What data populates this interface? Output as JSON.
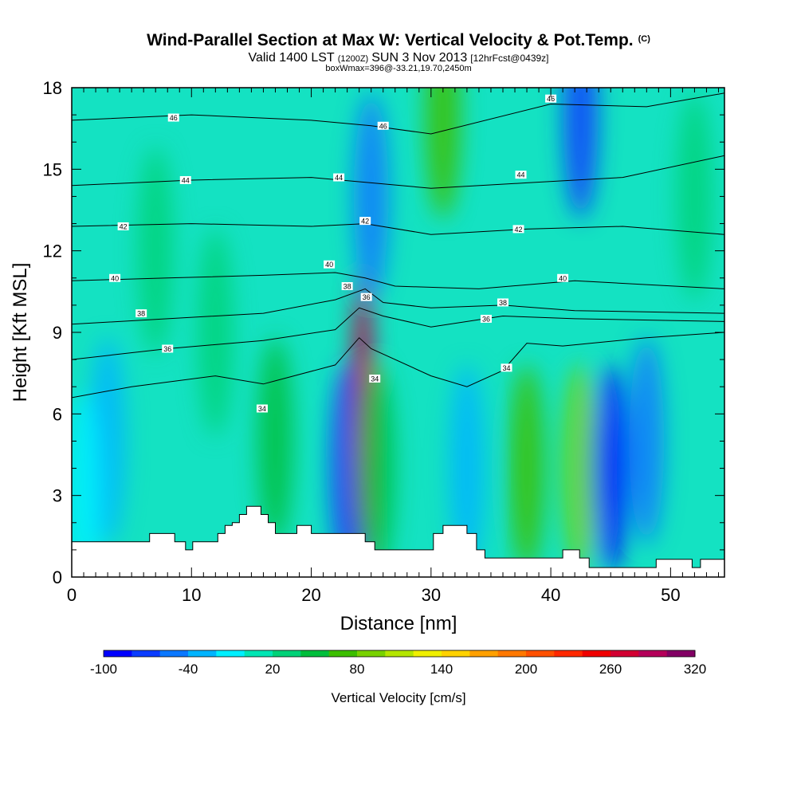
{
  "header": {
    "title": "Wind-Parallel Section at Max W: Vertical Velocity & Pot.Temp.",
    "copyright": "(C)",
    "valid_main": "Valid 1400 LST",
    "valid_utc": "(1200Z)",
    "valid_date": "SUN 3 Nov 2013",
    "forecast": "[12hrFcst@0439z]",
    "box_info": "boxWmax=396@-33.21,19.70,2450m"
  },
  "chart_data": {
    "type": "heatmap",
    "xlabel": "Distance [nm]",
    "ylabel": "Height [Kft MSL]",
    "xlim": [
      0,
      54.5
    ],
    "ylim": [
      0,
      18
    ],
    "x_ticks": [
      0,
      10,
      20,
      30,
      40,
      50
    ],
    "y_ticks": [
      0,
      3,
      6,
      9,
      12,
      15,
      18
    ],
    "colorbar": {
      "label": "Vertical Velocity [cm/s]",
      "min": -100,
      "max": 340,
      "step": 20,
      "tick_values": [
        -100,
        -40,
        20,
        80,
        140,
        200,
        260,
        320
      ],
      "colors": [
        "#0000ff",
        "#0a3cff",
        "#0a78ff",
        "#00b4ff",
        "#00f0ff",
        "#00e6b4",
        "#00d278",
        "#00be3c",
        "#3cbe00",
        "#78d200",
        "#b4e600",
        "#f0f000",
        "#ffd200",
        "#ffa000",
        "#ff7800",
        "#ff5000",
        "#ff2800",
        "#f00000",
        "#d20032",
        "#b4005a",
        "#820064"
      ]
    },
    "terrain_kft": [
      {
        "x": 0,
        "z": 1.3
      },
      {
        "x": 6.5,
        "z": 1.3
      },
      {
        "x": 6.5,
        "z": 1.6
      },
      {
        "x": 8.6,
        "z": 1.6
      },
      {
        "x": 8.6,
        "z": 1.3
      },
      {
        "x": 9.5,
        "z": 1.3
      },
      {
        "x": 9.5,
        "z": 1.0
      },
      {
        "x": 10.1,
        "z": 1.0
      },
      {
        "x": 10.1,
        "z": 1.3
      },
      {
        "x": 12.2,
        "z": 1.3
      },
      {
        "x": 12.2,
        "z": 1.6
      },
      {
        "x": 12.8,
        "z": 1.6
      },
      {
        "x": 12.8,
        "z": 1.9
      },
      {
        "x": 13.4,
        "z": 1.9
      },
      {
        "x": 13.4,
        "z": 2.0
      },
      {
        "x": 14.0,
        "z": 2.0
      },
      {
        "x": 14.0,
        "z": 2.3
      },
      {
        "x": 14.6,
        "z": 2.3
      },
      {
        "x": 14.6,
        "z": 2.6
      },
      {
        "x": 15.8,
        "z": 2.6
      },
      {
        "x": 15.8,
        "z": 2.3
      },
      {
        "x": 16.4,
        "z": 2.3
      },
      {
        "x": 16.4,
        "z": 2.0
      },
      {
        "x": 17.0,
        "z": 2.0
      },
      {
        "x": 17.0,
        "z": 1.6
      },
      {
        "x": 18.8,
        "z": 1.6
      },
      {
        "x": 18.8,
        "z": 1.9
      },
      {
        "x": 20.0,
        "z": 1.9
      },
      {
        "x": 20.0,
        "z": 1.6
      },
      {
        "x": 24.5,
        "z": 1.6
      },
      {
        "x": 24.5,
        "z": 1.3
      },
      {
        "x": 25.3,
        "z": 1.3
      },
      {
        "x": 25.3,
        "z": 1.0
      },
      {
        "x": 30.2,
        "z": 1.0
      },
      {
        "x": 30.2,
        "z": 1.6
      },
      {
        "x": 31.0,
        "z": 1.6
      },
      {
        "x": 31.0,
        "z": 1.9
      },
      {
        "x": 33.0,
        "z": 1.9
      },
      {
        "x": 33.0,
        "z": 1.6
      },
      {
        "x": 33.8,
        "z": 1.6
      },
      {
        "x": 33.8,
        "z": 1.0
      },
      {
        "x": 34.5,
        "z": 1.0
      },
      {
        "x": 34.5,
        "z": 0.7
      },
      {
        "x": 41.0,
        "z": 0.7
      },
      {
        "x": 41.0,
        "z": 1.0
      },
      {
        "x": 42.4,
        "z": 1.0
      },
      {
        "x": 42.4,
        "z": 0.7
      },
      {
        "x": 43.2,
        "z": 0.7
      },
      {
        "x": 43.2,
        "z": 0.35
      },
      {
        "x": 48.8,
        "z": 0.35
      },
      {
        "x": 48.8,
        "z": 0.65
      },
      {
        "x": 51.8,
        "z": 0.65
      },
      {
        "x": 51.8,
        "z": 0.35
      },
      {
        "x": 52.5,
        "z": 0.35
      },
      {
        "x": 52.5,
        "z": 0.65
      },
      {
        "x": 54.5,
        "z": 0.65
      }
    ],
    "vertical_velocity_cells": [
      {
        "x": 3,
        "z": 5,
        "w": -40
      },
      {
        "x": 1,
        "z": 3,
        "w": -20
      },
      {
        "x": 7,
        "z": 12,
        "w": 20
      },
      {
        "x": 12,
        "z": 9,
        "w": 20
      },
      {
        "x": 17,
        "z": 5,
        "w": 40
      },
      {
        "x": 23,
        "z": 4,
        "w": -80
      },
      {
        "x": 24.3,
        "z": 6,
        "w": 340
      },
      {
        "x": 25.5,
        "z": 4,
        "w": 40
      },
      {
        "x": 25,
        "z": 14,
        "w": -60
      },
      {
        "x": 31,
        "z": 17,
        "w": 60
      },
      {
        "x": 33,
        "z": 4,
        "w": -40
      },
      {
        "x": 38,
        "z": 4,
        "w": 60
      },
      {
        "x": 42.5,
        "z": 4,
        "w": 80
      },
      {
        "x": 45,
        "z": 4,
        "w": -100
      },
      {
        "x": 48,
        "z": 5,
        "w": -60
      },
      {
        "x": 42.5,
        "z": 17,
        "w": -80
      },
      {
        "x": 52,
        "z": 14,
        "w": 20
      }
    ],
    "theta_contours": [
      {
        "label": "34",
        "points": [
          {
            "x": 0,
            "z": 6.6
          },
          {
            "x": 5,
            "z": 7.0
          },
          {
            "x": 12,
            "z": 7.4
          },
          {
            "x": 16,
            "z": 7.1
          },
          {
            "x": 22,
            "z": 7.8
          },
          {
            "x": 24,
            "z": 8.8
          },
          {
            "x": 25,
            "z": 8.4
          },
          {
            "x": 30,
            "z": 7.4
          },
          {
            "x": 33,
            "z": 7.0
          },
          {
            "x": 36,
            "z": 7.6
          },
          {
            "x": 38,
            "z": 8.6
          },
          {
            "x": 41,
            "z": 8.5
          },
          {
            "x": 48,
            "z": 8.8
          },
          {
            "x": 54.5,
            "z": 9.0
          }
        ]
      },
      {
        "label": "36",
        "points": [
          {
            "x": 0,
            "z": 8.0
          },
          {
            "x": 8,
            "z": 8.4
          },
          {
            "x": 16,
            "z": 8.7
          },
          {
            "x": 22,
            "z": 9.1
          },
          {
            "x": 24,
            "z": 9.9
          },
          {
            "x": 26,
            "z": 9.6
          },
          {
            "x": 30,
            "z": 9.2
          },
          {
            "x": 36,
            "z": 9.6
          },
          {
            "x": 42,
            "z": 9.5
          },
          {
            "x": 54.5,
            "z": 9.4
          }
        ]
      },
      {
        "label": "38",
        "points": [
          {
            "x": 0,
            "z": 9.3
          },
          {
            "x": 8,
            "z": 9.5
          },
          {
            "x": 16,
            "z": 9.7
          },
          {
            "x": 22,
            "z": 10.2
          },
          {
            "x": 24.5,
            "z": 10.6
          },
          {
            "x": 26,
            "z": 10.1
          },
          {
            "x": 30,
            "z": 9.9
          },
          {
            "x": 36,
            "z": 10.0
          },
          {
            "x": 42,
            "z": 9.8
          },
          {
            "x": 54.5,
            "z": 9.7
          }
        ]
      },
      {
        "label": "40",
        "points": [
          {
            "x": 0,
            "z": 10.9
          },
          {
            "x": 8,
            "z": 11.0
          },
          {
            "x": 16,
            "z": 11.1
          },
          {
            "x": 22,
            "z": 11.2
          },
          {
            "x": 24.5,
            "z": 11.0
          },
          {
            "x": 27,
            "z": 10.7
          },
          {
            "x": 34,
            "z": 10.6
          },
          {
            "x": 42,
            "z": 10.9
          },
          {
            "x": 54.5,
            "z": 10.6
          }
        ]
      },
      {
        "label": "42",
        "points": [
          {
            "x": 0,
            "z": 12.9
          },
          {
            "x": 10,
            "z": 13.0
          },
          {
            "x": 20,
            "z": 12.9
          },
          {
            "x": 24.5,
            "z": 13.0
          },
          {
            "x": 30,
            "z": 12.6
          },
          {
            "x": 38,
            "z": 12.8
          },
          {
            "x": 46,
            "z": 12.9
          },
          {
            "x": 54.5,
            "z": 12.6
          }
        ]
      },
      {
        "label": "44",
        "points": [
          {
            "x": 0,
            "z": 14.4
          },
          {
            "x": 10,
            "z": 14.6
          },
          {
            "x": 20,
            "z": 14.7
          },
          {
            "x": 25,
            "z": 14.5
          },
          {
            "x": 30,
            "z": 14.3
          },
          {
            "x": 38,
            "z": 14.5
          },
          {
            "x": 46,
            "z": 14.7
          },
          {
            "x": 54.5,
            "z": 15.5
          }
        ]
      },
      {
        "label": "46",
        "points": [
          {
            "x": 0,
            "z": 16.8
          },
          {
            "x": 10,
            "z": 17.0
          },
          {
            "x": 20,
            "z": 16.8
          },
          {
            "x": 25,
            "z": 16.6
          },
          {
            "x": 30,
            "z": 16.3
          },
          {
            "x": 40,
            "z": 17.4
          },
          {
            "x": 48,
            "z": 17.3
          },
          {
            "x": 54.5,
            "z": 17.8
          }
        ]
      }
    ],
    "contour_labels": [
      {
        "text": "46",
        "x": 8.5,
        "z": 16.9
      },
      {
        "text": "46",
        "x": 26.0,
        "z": 16.6
      },
      {
        "text": "46",
        "x": 40.0,
        "z": 17.6
      },
      {
        "text": "44",
        "x": 9.5,
        "z": 14.6
      },
      {
        "text": "44",
        "x": 22.3,
        "z": 14.7
      },
      {
        "text": "44",
        "x": 37.5,
        "z": 14.8
      },
      {
        "text": "42",
        "x": 4.3,
        "z": 12.9
      },
      {
        "text": "42",
        "x": 24.5,
        "z": 13.1
      },
      {
        "text": "42",
        "x": 37.3,
        "z": 12.8
      },
      {
        "text": "40",
        "x": 3.6,
        "z": 11.0
      },
      {
        "text": "40",
        "x": 21.5,
        "z": 11.5
      },
      {
        "text": "40",
        "x": 41.0,
        "z": 11.0
      },
      {
        "text": "38",
        "x": 5.8,
        "z": 9.7
      },
      {
        "text": "38",
        "x": 23.0,
        "z": 10.7
      },
      {
        "text": "38",
        "x": 36.0,
        "z": 10.1
      },
      {
        "text": "36",
        "x": 8.0,
        "z": 8.4
      },
      {
        "text": "36",
        "x": 24.6,
        "z": 10.3
      },
      {
        "text": "36",
        "x": 34.6,
        "z": 9.5
      },
      {
        "text": "34",
        "x": 15.9,
        "z": 6.2
      },
      {
        "text": "34",
        "x": 25.3,
        "z": 7.3
      },
      {
        "text": "34",
        "x": 36.3,
        "z": 7.7
      }
    ]
  }
}
